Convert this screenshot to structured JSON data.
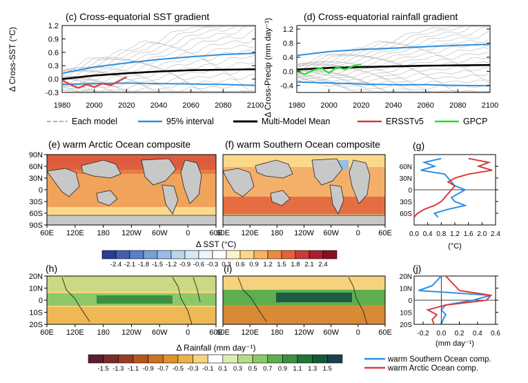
{
  "top_panels": {
    "c_title": "(c) Cross-equatorial SST gradient",
    "d_title": "(d) Cross-equatorial rainfall gradient",
    "c_ylabel": "Δ Cross-SST (°C)",
    "d_ylabel": "Δ Cross-Precip (mm day⁻¹)",
    "c_yticks": [
      "1.2",
      "0.9",
      "0.6",
      "0.3",
      "0.0",
      "-0.3"
    ],
    "d_yticks": [
      "1.2",
      "0.8",
      "0.4",
      "0.0",
      "-0.4"
    ],
    "xticks": [
      "1980",
      "2000",
      "2020",
      "2040",
      "2060",
      "2080",
      "2100"
    ]
  },
  "legend_top": {
    "each_model": "Each model",
    "interval": "95% interval",
    "mmm": "Multi-Model Mean",
    "ersst": "ERSSTv5",
    "gpcp": "GPCP"
  },
  "maps": {
    "e_title": "(e) warm Arctic Ocean composite",
    "f_title": "(f) warm Southern Ocean composite",
    "g_label": "(g)",
    "h_label": "(h)",
    "i_label": "(i)",
    "j_label": "(j)",
    "lat_ticks_sst": [
      "90N",
      "60N",
      "30N",
      "0",
      "30S",
      "60S",
      "90S"
    ],
    "lat_ticks_rain": [
      "20N",
      "10N",
      "0",
      "10S",
      "20S"
    ],
    "lon_ticks": [
      "60E",
      "120E",
      "180",
      "120W",
      "60W",
      "0",
      "60E"
    ]
  },
  "colorbar_sst": {
    "label": "Δ SST (°C)",
    "ticks": [
      "-2.4",
      "-2.1",
      "-1.8",
      "-1.5",
      "-1.2",
      "-0.9",
      "-0.6",
      "-0.3",
      "0.3",
      "0.6",
      "0.9",
      "1.2",
      "1.5",
      "1.8",
      "2.1",
      "2.4"
    ],
    "colors": [
      "#2a3c93",
      "#3f5fb0",
      "#5880c6",
      "#76a0d6",
      "#96bde3",
      "#b8d6ec",
      "#d7e8f2",
      "#eef5fa",
      "#ffffff",
      "#fdf1c8",
      "#fbd98c",
      "#f7b45f",
      "#ee8a43",
      "#e2623a",
      "#cc3b32",
      "#a91f2c",
      "#8a0f24"
    ]
  },
  "colorbar_rain": {
    "label": "Δ Rainfall (mm day⁻¹)",
    "ticks": [
      "-1.5",
      "-1.3",
      "-1.1",
      "-0.9",
      "-0.7",
      "-0.5",
      "-0.3",
      "-0.1",
      "0.1",
      "0.3",
      "0.5",
      "0.7",
      "0.9",
      "1.1",
      "1.3",
      "1.5"
    ],
    "colors": [
      "#5b1e2a",
      "#7b2b26",
      "#9a3d20",
      "#b5561c",
      "#cd7220",
      "#df922c",
      "#ecb24a",
      "#f5d27e",
      "#ffffff",
      "#dcedb3",
      "#b7dc87",
      "#8cc868",
      "#5fae4d",
      "#3b9140",
      "#1f7636",
      "#155a37",
      "#1b3f4f"
    ]
  },
  "profile_g": {
    "xticks": [
      "0.0",
      "0.4",
      "0.8",
      "1.2",
      "1.6",
      "2.0",
      "2.4"
    ],
    "xlabel": "(°C)",
    "yticks": [
      "60N",
      "30N",
      "0",
      "30S",
      "60S"
    ]
  },
  "profile_j": {
    "xticks": [
      "-0.2",
      "0.0",
      "0.2",
      "0.4",
      "0.6"
    ],
    "xlabel": "(mm day⁻¹)",
    "yticks": [
      "20N",
      "10N",
      "0",
      "10S",
      "20S"
    ]
  },
  "legend_bottom": {
    "southern": "warm Southern Ocean comp.",
    "arctic": "warm Arctic Ocean comp."
  },
  "colors": {
    "interval": "#2b8fe0",
    "mmm": "#000000",
    "ersst": "#d93a3a",
    "gpcp": "#27e027",
    "model": "#b5b5b5",
    "southern": "#2b8fe0",
    "arctic": "#d93a3a",
    "land": "#c8c8c8"
  },
  "chart_data": [
    {
      "type": "line",
      "title": "(c) Cross-equatorial SST gradient",
      "ylabel": "Δ Cross-SST (°C)",
      "xlim": [
        1980,
        2100
      ],
      "ylim": [
        -0.3,
        1.2
      ],
      "series": [
        {
          "name": "95% interval",
          "x": [
            1980,
            2000,
            2020,
            2040,
            2060,
            2080,
            2100
          ],
          "values": [
            0.13,
            0.27,
            0.36,
            0.44,
            0.5,
            0.55,
            0.58
          ]
        },
        {
          "name": "95% interval",
          "x": [
            1980,
            2000,
            2020,
            2040,
            2060,
            2080,
            2100
          ],
          "values": [
            -0.12,
            -0.1,
            -0.09,
            -0.1,
            -0.11,
            -0.12,
            -0.14
          ]
        },
        {
          "name": "Multi-Model Mean",
          "x": [
            1980,
            2000,
            2020,
            2040,
            2060,
            2080,
            2100
          ],
          "values": [
            0.0,
            0.08,
            0.13,
            0.17,
            0.2,
            0.21,
            0.22
          ]
        },
        {
          "name": "ERSSTv5",
          "x": [
            1980,
            1985,
            1990,
            1995,
            2000,
            2005,
            2010,
            2015,
            2020
          ],
          "values": [
            -0.03,
            -0.12,
            -0.2,
            -0.12,
            -0.18,
            -0.1,
            -0.14,
            -0.05,
            0.05
          ]
        }
      ]
    },
    {
      "type": "line",
      "title": "(d) Cross-equatorial rainfall gradient",
      "ylabel": "Δ Cross-Precip (mm day⁻¹)",
      "xlim": [
        1980,
        2100
      ],
      "ylim": [
        -0.6,
        1.3
      ],
      "series": [
        {
          "name": "95% interval",
          "x": [
            1980,
            2000,
            2020,
            2040,
            2060,
            2080,
            2100
          ],
          "values": [
            0.45,
            0.56,
            0.62,
            0.66,
            0.7,
            0.74,
            0.77
          ]
        },
        {
          "name": "95% interval",
          "x": [
            1980,
            2000,
            2020,
            2040,
            2060,
            2080,
            2100
          ],
          "values": [
            -0.3,
            -0.33,
            -0.36,
            -0.38,
            -0.38,
            -0.4,
            -0.41
          ]
        },
        {
          "name": "Multi-Model Mean",
          "x": [
            1980,
            2000,
            2020,
            2040,
            2060,
            2080,
            2100
          ],
          "values": [
            0.05,
            0.1,
            0.12,
            0.14,
            0.16,
            0.17,
            0.18
          ]
        },
        {
          "name": "GPCP",
          "x": [
            1980,
            1985,
            1990,
            1995,
            2000,
            2005,
            2010,
            2015,
            2020
          ],
          "values": [
            0.0,
            -0.08,
            0.03,
            0.1,
            -0.05,
            0.12,
            0.05,
            0.15,
            0.2
          ]
        }
      ]
    },
    {
      "type": "line",
      "title": "(g)",
      "xlabel": "(°C)",
      "xlim": [
        0,
        2.4
      ],
      "ylim": [
        -90,
        90
      ],
      "series": [
        {
          "name": "warm Southern Ocean comp.",
          "lat": [
            80,
            70,
            60,
            50,
            40,
            30,
            20,
            10,
            0,
            -10,
            -20,
            -30,
            -40,
            -50,
            -60,
            -70
          ],
          "values": [
            0.8,
            0.3,
            0.6,
            0.2,
            0.9,
            1.0,
            1.1,
            1.2,
            1.5,
            1.3,
            1.1,
            1.2,
            1.5,
            1.0,
            0.6,
            0.7
          ]
        },
        {
          "name": "warm Arctic Ocean comp.",
          "lat": [
            80,
            70,
            60,
            50,
            40,
            30,
            20,
            10,
            0,
            -10,
            -20,
            -30,
            -40,
            -50,
            -60,
            -70
          ],
          "values": [
            1.6,
            2.2,
            1.9,
            2.3,
            1.6,
            1.2,
            1.0,
            1.2,
            1.1,
            1.0,
            0.9,
            0.8,
            0.6,
            0.3,
            0.1,
            0.0
          ]
        }
      ]
    },
    {
      "type": "line",
      "title": "(j)",
      "xlabel": "(mm day⁻¹)",
      "xlim": [
        -0.3,
        0.6
      ],
      "ylim": [
        -20,
        20
      ],
      "series": [
        {
          "name": "warm Southern Ocean comp.",
          "lat": [
            20,
            16,
            12,
            8,
            4,
            0,
            -4,
            -8,
            -12,
            -16,
            -20
          ],
          "values": [
            0.0,
            -0.05,
            -0.1,
            -0.25,
            0.55,
            0.35,
            0.05,
            0.0,
            0.05,
            0.02,
            0.0
          ]
        },
        {
          "name": "warm Arctic Ocean comp.",
          "lat": [
            20,
            16,
            12,
            8,
            4,
            0,
            -4,
            -8,
            -12,
            -16,
            -20
          ],
          "values": [
            0.05,
            0.1,
            0.15,
            0.2,
            0.55,
            0.5,
            0.05,
            -0.15,
            -0.05,
            -0.1,
            -0.08
          ]
        }
      ]
    }
  ]
}
